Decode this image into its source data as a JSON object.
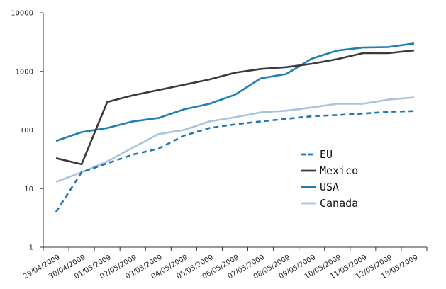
{
  "chart_data": {
    "type": "line",
    "title": "",
    "xlabel": "",
    "ylabel": "",
    "y_scale": "log",
    "ylim": [
      1,
      10000
    ],
    "y_ticks": [
      1,
      10,
      100,
      1000,
      10000
    ],
    "y_tick_labels": [
      "1",
      "10",
      "100",
      "1000",
      "10000"
    ],
    "x": [
      "29/04/2009",
      "30/04/2009",
      "01/05/2009",
      "02/05/2009",
      "03/05/2009",
      "04/05/2009",
      "05/05/2009",
      "06/05/2009",
      "07/05/2009",
      "08/05/2009",
      "09/05/2009",
      "10/05/2009",
      "11/05/2009",
      "12/05/2009",
      "13/05/2009"
    ],
    "grid": false,
    "legend_position": "center-right",
    "series": [
      {
        "name": "EU",
        "color": "#1f78b4",
        "dash": true,
        "values": [
          4,
          19,
          27,
          38,
          48,
          80,
          108,
          125,
          140,
          155,
          172,
          180,
          190,
          205,
          210
        ]
      },
      {
        "name": "Mexico",
        "color": "#3a3a3a",
        "dash": false,
        "values": [
          33,
          26,
          300,
          390,
          480,
          590,
          730,
          950,
          1100,
          1180,
          1350,
          1620,
          2050,
          2050,
          2280
        ]
      },
      {
        "name": "USA",
        "color": "#1f7fb4",
        "dash": false,
        "values": [
          65,
          92,
          108,
          140,
          160,
          225,
          280,
          400,
          760,
          900,
          1650,
          2270,
          2550,
          2600,
          3000
        ]
      },
      {
        "name": "Canada",
        "color": "#a8c4e0",
        "dash": false,
        "values": [
          13,
          19,
          29,
          50,
          85,
          100,
          140,
          165,
          200,
          213,
          242,
          280,
          280,
          330,
          360
        ]
      }
    ]
  }
}
